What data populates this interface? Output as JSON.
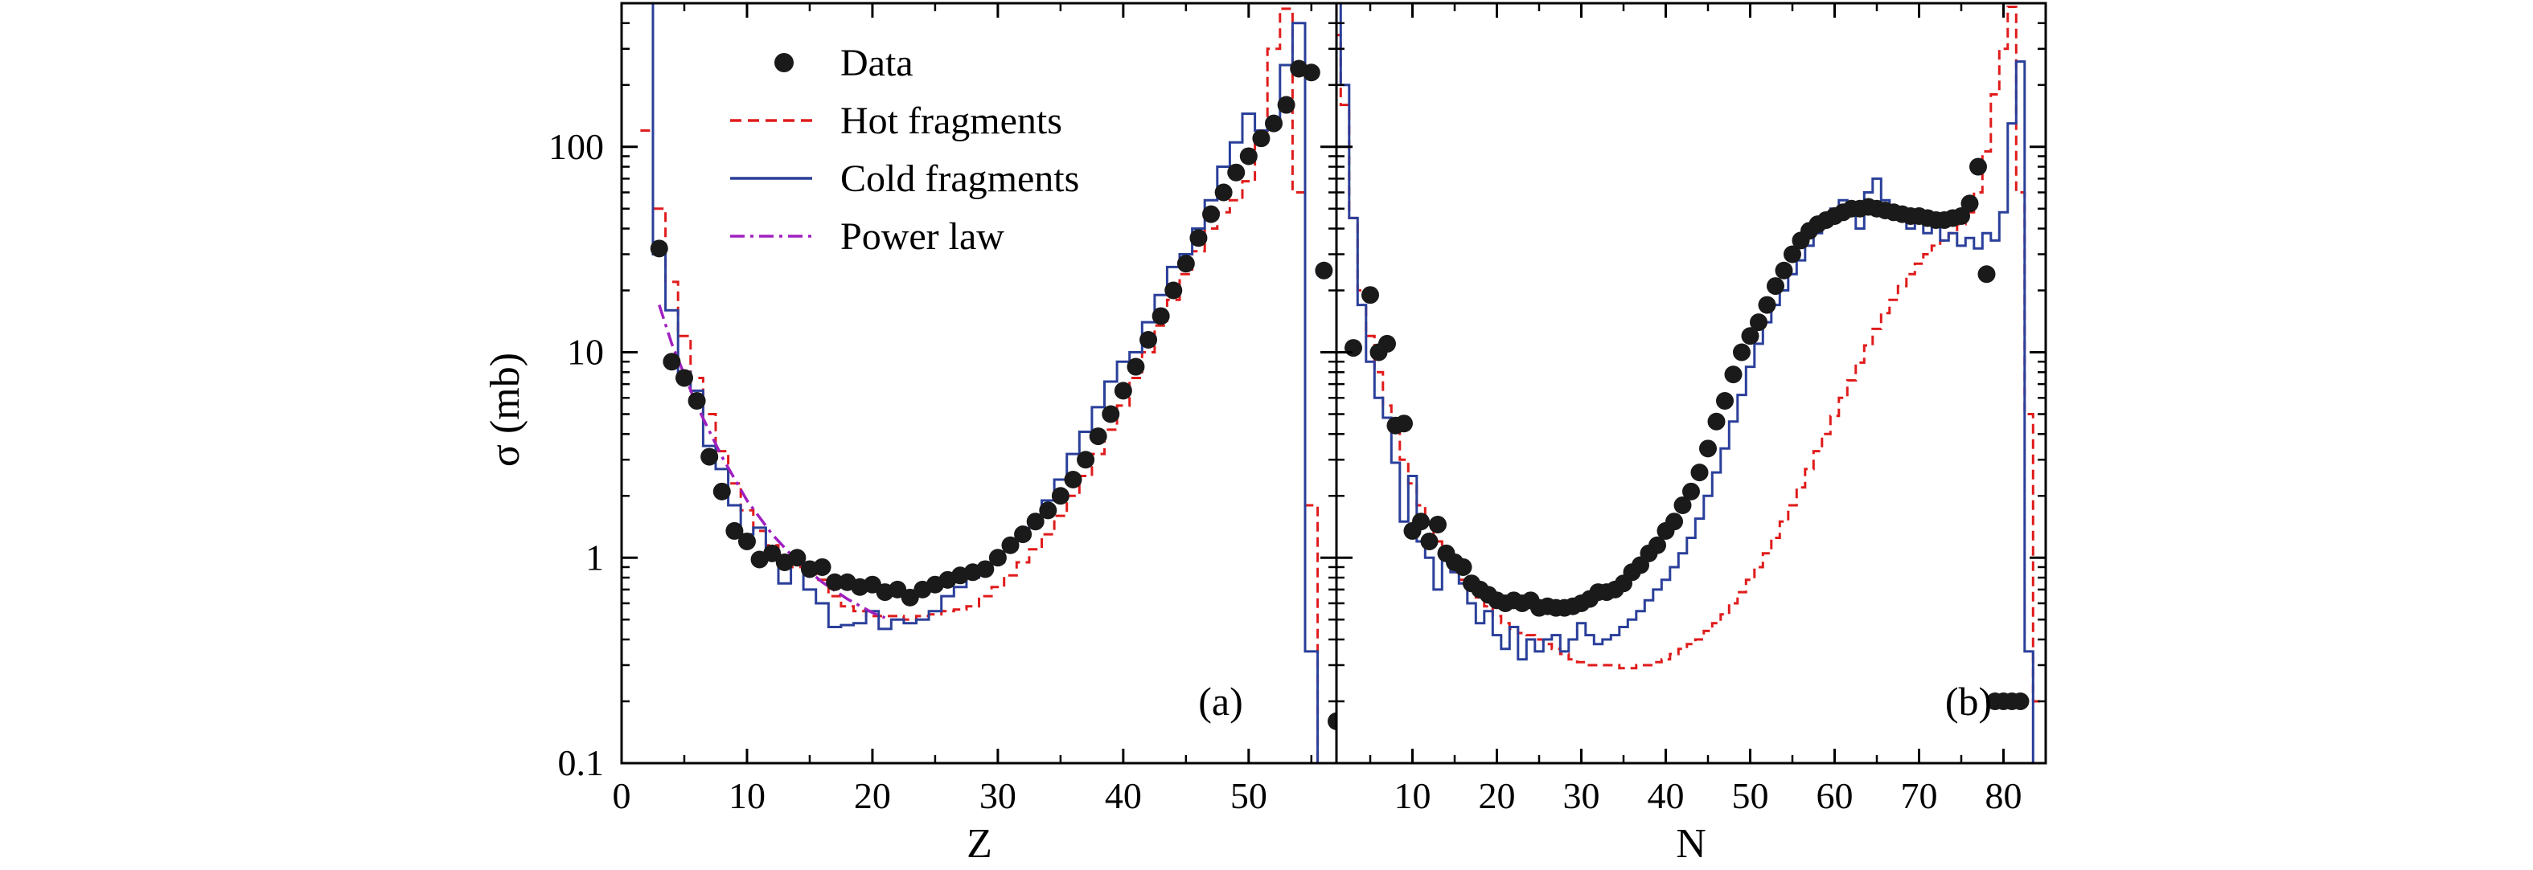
{
  "colors": {
    "data": "#1a1a1a",
    "hot": "#e01b1b",
    "cold": "#2a3f9a",
    "power": "#a020c0",
    "axis": "#000000"
  },
  "legend": [
    {
      "key": "data",
      "label": "Data"
    },
    {
      "key": "hot",
      "label": "Hot fragments"
    },
    {
      "key": "cold",
      "label": "Cold fragments"
    },
    {
      "key": "power",
      "label": "Power law"
    }
  ],
  "y_axis": {
    "label": "σ (mb)",
    "scale": "log",
    "range": [
      0.1,
      500
    ],
    "ticks": [
      0.1,
      1,
      10,
      100
    ],
    "tick_labels": [
      "0.1",
      "1",
      "10",
      "100"
    ]
  },
  "panels": [
    {
      "id": "a",
      "label": "(a)",
      "xlabel": "Z",
      "xlim": [
        0,
        57
      ],
      "ticks": [
        0,
        10,
        20,
        30,
        40,
        50
      ],
      "tick_labels": [
        "0",
        "10",
        "20",
        "30",
        "40",
        "50"
      ]
    },
    {
      "id": "b",
      "label": "(b)",
      "xlabel": "N",
      "xlim": [
        1,
        85
      ],
      "ticks": [
        10,
        20,
        30,
        40,
        50,
        60,
        70,
        80
      ],
      "tick_labels": [
        "10",
        "20",
        "30",
        "40",
        "50",
        "60",
        "70",
        "80"
      ]
    }
  ],
  "chart_data": [
    {
      "type": "scatter",
      "panel": "a",
      "xlabel": "Z",
      "ylabel": "σ (mb)",
      "xlim": [
        0,
        57
      ],
      "ylim": [
        0.1,
        500
      ],
      "yscale": "log",
      "series": [
        {
          "name": "Data",
          "style": "markers",
          "x": [
            3,
            4,
            5,
            6,
            7,
            8,
            9,
            10,
            11,
            12,
            13,
            14,
            15,
            16,
            17,
            18,
            19,
            20,
            21,
            22,
            23,
            24,
            25,
            26,
            27,
            28,
            29,
            30,
            31,
            32,
            33,
            34,
            35,
            36,
            37,
            38,
            39,
            40,
            41,
            42,
            43,
            44,
            45,
            46,
            47,
            48,
            49,
            50,
            51,
            52,
            53,
            54,
            55,
            56,
            57
          ],
          "y": [
            32,
            9,
            7.5,
            5.8,
            3.1,
            2.1,
            1.35,
            1.2,
            0.98,
            1.05,
            0.95,
            1.0,
            0.88,
            0.9,
            0.76,
            0.76,
            0.72,
            0.74,
            0.68,
            0.7,
            0.64,
            0.7,
            0.74,
            0.78,
            0.82,
            0.85,
            0.88,
            1.0,
            1.15,
            1.3,
            1.5,
            1.7,
            2.0,
            2.4,
            3.0,
            3.9,
            5.0,
            6.5,
            8.5,
            11.5,
            15,
            20,
            27,
            36,
            47,
            60,
            75,
            90,
            110,
            130,
            160,
            240,
            230,
            25,
            0.16
          ]
        },
        {
          "name": "Hot fragments",
          "style": "step-dashed",
          "x": [
            2,
            3,
            4,
            5,
            6,
            7,
            8,
            9,
            10,
            11,
            12,
            13,
            14,
            15,
            16,
            17,
            18,
            19,
            20,
            21,
            22,
            23,
            24,
            25,
            26,
            27,
            28,
            29,
            30,
            31,
            32,
            33,
            34,
            35,
            36,
            37,
            38,
            39,
            40,
            41,
            42,
            43,
            44,
            45,
            46,
            47,
            48,
            49,
            50,
            51,
            52,
            53,
            54,
            55,
            56,
            57
          ],
          "y": [
            120,
            50,
            22,
            12,
            7.5,
            5.0,
            3.3,
            2.3,
            1.7,
            1.35,
            1.15,
            1.0,
            0.9,
            0.85,
            0.78,
            0.65,
            0.58,
            0.55,
            0.52,
            0.52,
            0.52,
            0.5,
            0.52,
            0.53,
            0.55,
            0.56,
            0.58,
            0.65,
            0.72,
            0.82,
            0.95,
            1.1,
            1.3,
            1.6,
            2.0,
            2.5,
            3.2,
            4.2,
            5.5,
            7.5,
            10,
            13.5,
            18,
            24,
            31,
            40,
            48,
            55,
            68,
            105,
            300,
            470,
            60,
            1.8,
            0.1,
            0.1
          ]
        },
        {
          "name": "Cold fragments",
          "style": "step-solid",
          "x": [
            2,
            3,
            4,
            5,
            6,
            7,
            8,
            9,
            10,
            11,
            12,
            13,
            14,
            15,
            16,
            17,
            18,
            19,
            20,
            21,
            22,
            23,
            24,
            25,
            26,
            27,
            28,
            29,
            30,
            31,
            32,
            33,
            34,
            35,
            36,
            37,
            38,
            39,
            40,
            41,
            42,
            43,
            44,
            45,
            46,
            47,
            48,
            49,
            50,
            51,
            52,
            53,
            54,
            55,
            56,
            57
          ],
          "y": [
            500,
            30,
            16,
            8,
            6.5,
            3.5,
            2.7,
            1.8,
            1.3,
            1.4,
            1.0,
            0.75,
            0.98,
            0.7,
            0.6,
            0.46,
            0.47,
            0.48,
            0.55,
            0.45,
            0.5,
            0.48,
            0.5,
            0.55,
            0.65,
            0.72,
            0.8,
            0.88,
            0.95,
            1.1,
            1.3,
            1.55,
            1.9,
            2.4,
            3.2,
            4.1,
            5.4,
            7.2,
            9.0,
            10,
            14,
            19,
            26,
            30,
            40,
            55,
            80,
            105,
            145,
            120,
            130,
            250,
            400,
            0.35,
            0.1,
            0.1
          ]
        },
        {
          "name": "Power law",
          "style": "dashdot",
          "x": [
            3,
            4,
            6,
            8,
            10,
            12,
            14,
            16,
            18,
            20,
            21
          ],
          "y": [
            17,
            11,
            5.5,
            3.1,
            1.9,
            1.3,
            0.96,
            0.76,
            0.63,
            0.54,
            0.51
          ]
        }
      ]
    },
    {
      "type": "scatter",
      "panel": "b",
      "xlabel": "N",
      "ylabel": "σ (mb)",
      "xlim": [
        1,
        85
      ],
      "ylim": [
        0.1,
        500
      ],
      "yscale": "log",
      "series": [
        {
          "name": "Data",
          "style": "markers",
          "x": [
            3,
            5,
            6,
            7,
            8,
            9,
            10,
            11,
            12,
            13,
            14,
            15,
            16,
            17,
            18,
            19,
            20,
            21,
            22,
            23,
            24,
            25,
            26,
            27,
            28,
            29,
            30,
            31,
            32,
            33,
            34,
            35,
            36,
            37,
            38,
            39,
            40,
            41,
            42,
            43,
            44,
            45,
            46,
            47,
            48,
            49,
            50,
            51,
            52,
            53,
            54,
            55,
            56,
            57,
            58,
            59,
            60,
            61,
            62,
            63,
            64,
            65,
            66,
            67,
            68,
            69,
            70,
            71,
            72,
            73,
            74,
            75,
            76,
            77,
            78,
            79,
            80,
            81,
            82
          ],
          "y": [
            10.5,
            19,
            10,
            11,
            4.4,
            4.5,
            1.35,
            1.5,
            1.2,
            1.45,
            1.05,
            0.95,
            0.9,
            0.75,
            0.7,
            0.66,
            0.62,
            0.6,
            0.62,
            0.6,
            0.62,
            0.57,
            0.58,
            0.57,
            0.57,
            0.58,
            0.6,
            0.63,
            0.68,
            0.68,
            0.7,
            0.75,
            0.85,
            0.92,
            1.05,
            1.15,
            1.35,
            1.5,
            1.8,
            2.1,
            2.6,
            3.4,
            4.6,
            5.8,
            7.8,
            10,
            12,
            14,
            17,
            21,
            25,
            30,
            35,
            39,
            42,
            44,
            46,
            48,
            50,
            50,
            51,
            50,
            49,
            48,
            47,
            46,
            46,
            45,
            44,
            44,
            45,
            46,
            53,
            80,
            24,
            0.2,
            0.2,
            0.2,
            0.2
          ]
        },
        {
          "name": "Hot fragments",
          "style": "step-dashed",
          "x": [
            1,
            2,
            3,
            4,
            5,
            6,
            7,
            8,
            9,
            10,
            11,
            12,
            13,
            14,
            15,
            16,
            17,
            18,
            19,
            20,
            21,
            22,
            23,
            24,
            25,
            26,
            27,
            28,
            29,
            30,
            31,
            32,
            33,
            34,
            35,
            36,
            37,
            38,
            39,
            40,
            41,
            42,
            43,
            44,
            45,
            46,
            47,
            48,
            49,
            50,
            51,
            52,
            53,
            54,
            55,
            56,
            57,
            58,
            59,
            60,
            61,
            62,
            63,
            64,
            65,
            66,
            67,
            68,
            69,
            70,
            71,
            72,
            73,
            74,
            75,
            76,
            77,
            78,
            79,
            80,
            81,
            82,
            83,
            84
          ],
          "y": [
            350,
            160,
            45,
            20,
            12,
            8,
            5.5,
            4.2,
            3.0,
            2.3,
            1.8,
            1.45,
            1.2,
            1.0,
            0.85,
            0.78,
            0.7,
            0.64,
            0.58,
            0.52,
            0.48,
            0.45,
            0.43,
            0.42,
            0.4,
            0.38,
            0.36,
            0.34,
            0.32,
            0.31,
            0.3,
            0.3,
            0.3,
            0.3,
            0.29,
            0.29,
            0.3,
            0.3,
            0.31,
            0.32,
            0.34,
            0.36,
            0.38,
            0.4,
            0.44,
            0.48,
            0.53,
            0.6,
            0.68,
            0.78,
            0.9,
            1.05,
            1.25,
            1.5,
            1.8,
            2.2,
            2.7,
            3.3,
            4.0,
            4.9,
            6.0,
            7.3,
            8.9,
            10.8,
            13,
            15.5,
            18,
            21,
            24,
            27,
            30,
            33,
            35,
            38,
            42,
            48,
            60,
            95,
            180,
            300,
            480,
            60,
            5,
            0.2
          ]
        },
        {
          "name": "Cold fragments",
          "style": "step-solid",
          "x": [
            1,
            2,
            3,
            4,
            5,
            6,
            7,
            8,
            9,
            10,
            11,
            12,
            13,
            14,
            15,
            16,
            17,
            18,
            19,
            20,
            21,
            22,
            23,
            24,
            25,
            26,
            27,
            28,
            29,
            30,
            31,
            32,
            33,
            34,
            35,
            36,
            37,
            38,
            39,
            40,
            41,
            42,
            43,
            44,
            45,
            46,
            47,
            48,
            49,
            50,
            51,
            52,
            53,
            54,
            55,
            56,
            57,
            58,
            59,
            60,
            61,
            62,
            63,
            64,
            65,
            66,
            67,
            68,
            69,
            70,
            71,
            72,
            73,
            74,
            75,
            76,
            77,
            78,
            79,
            80,
            81,
            82,
            83,
            84
          ],
          "y": [
            500,
            200,
            45,
            17,
            9,
            6,
            4.8,
            2.9,
            1.5,
            2.5,
            1.2,
            1.0,
            0.7,
            1.05,
            0.85,
            0.75,
            0.6,
            0.48,
            0.55,
            0.42,
            0.36,
            0.46,
            0.32,
            0.4,
            0.35,
            0.4,
            0.42,
            0.35,
            0.4,
            0.48,
            0.42,
            0.38,
            0.4,
            0.42,
            0.46,
            0.5,
            0.55,
            0.62,
            0.7,
            0.78,
            0.9,
            1.05,
            1.25,
            1.55,
            2.0,
            2.6,
            3.4,
            4.6,
            6.2,
            8.5,
            11,
            14,
            17,
            20,
            24,
            28,
            33,
            38,
            44,
            50,
            55,
            50,
            40,
            60,
            70,
            55,
            45,
            48,
            40,
            45,
            38,
            42,
            35,
            38,
            33,
            36,
            32,
            38,
            35,
            48,
            130,
            260,
            0.35,
            0.1
          ]
        }
      ]
    }
  ]
}
